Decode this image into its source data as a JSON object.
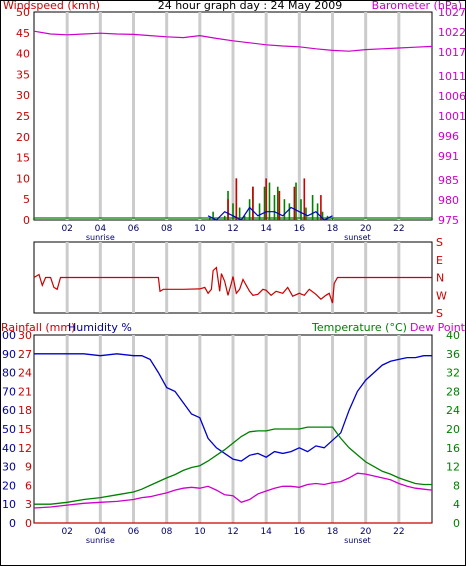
{
  "chart_data": [
    {
      "type": "line",
      "title": "24 hour graph day : 24 May 2009",
      "left_axis": {
        "label": "Windspeed (kmh)",
        "ticks": [
          0,
          5,
          10,
          15,
          20,
          25,
          30,
          35,
          40,
          45,
          50
        ],
        "range": [
          0,
          50
        ],
        "color": "#cc0000"
      },
      "right_axis": {
        "label": "Barometer (hPa)",
        "ticks": [
          975,
          980,
          985,
          991,
          996,
          1001,
          1006,
          1011,
          1017,
          1022,
          1027
        ],
        "range": [
          975,
          1027
        ],
        "color": "#cc00cc"
      },
      "x_axis": {
        "ticks": [
          "02",
          "04",
          "06",
          "08",
          "10",
          "12",
          "14",
          "16",
          "18",
          "20",
          "22"
        ],
        "range": [
          0,
          24
        ],
        "annotations": [
          {
            "label": "sunrise",
            "hour": 4
          },
          {
            "label": "sunset",
            "hour": 19.5
          }
        ]
      },
      "grid": true,
      "series": [
        {
          "name": "Barometer (hPa)",
          "axis": "right",
          "color": "#cc00cc",
          "x": [
            0,
            1,
            2,
            3,
            4,
            5,
            6,
            7,
            8,
            9,
            10,
            11,
            12,
            13,
            14,
            15,
            16,
            17,
            18,
            19,
            20,
            21,
            22,
            23,
            24
          ],
          "values": [
            1022.2,
            1021.5,
            1021.3,
            1021.5,
            1021.7,
            1021.5,
            1021.4,
            1021.1,
            1020.8,
            1020.6,
            1021.1,
            1020.4,
            1019.8,
            1019.3,
            1018.8,
            1018.5,
            1018.3,
            1017.8,
            1017.4,
            1017.2,
            1017.6,
            1017.8,
            1018.0,
            1018.2,
            1018.4
          ]
        },
        {
          "name": "Windspeed (kmh)",
          "axis": "left",
          "color": "#008000",
          "x": [
            0,
            10.6,
            10.8,
            11.5,
            11.7,
            12.0,
            12.2,
            12.4,
            12.7,
            13.0,
            13.2,
            13.6,
            13.9,
            14.2,
            14.5,
            14.7,
            15.1,
            15.4,
            15.8,
            16.1,
            16.4,
            16.8,
            17.1,
            17.4,
            17.7,
            18.0,
            24
          ],
          "values": [
            0.5,
            0.5,
            2,
            1,
            7,
            4,
            10,
            3,
            1,
            5,
            8,
            4,
            8,
            9,
            6,
            8,
            5,
            4,
            9,
            5,
            3,
            6,
            4,
            2,
            1,
            0.5,
            0.5
          ]
        },
        {
          "name": "Wind gust (kmh)",
          "axis": "left",
          "color": "#cc0000",
          "x": [
            11.7,
            12.2,
            13.2,
            14.0,
            14.8,
            15.7,
            16.3,
            17.3
          ],
          "values": [
            5,
            10,
            8,
            10,
            7,
            8,
            10,
            6
          ]
        },
        {
          "name": "Windspeed avg (kmh)",
          "axis": "left",
          "color": "#0000cc",
          "x": [
            10.5,
            11,
            11.5,
            12,
            12.5,
            13,
            13.5,
            14,
            14.5,
            15,
            15.5,
            16,
            16.5,
            17,
            17.5,
            18
          ],
          "values": [
            1,
            0,
            2,
            1,
            0,
            3,
            1,
            2,
            2,
            1,
            3,
            2,
            1,
            2,
            0,
            1
          ]
        }
      ]
    },
    {
      "type": "line",
      "title": "",
      "right_axis": {
        "ticks": [
          "S",
          "E",
          "N",
          "W",
          "S"
        ],
        "labels": [
          "S",
          "E",
          "N",
          "W",
          "S"
        ],
        "range": [
          0,
          360
        ]
      },
      "x_axis": {
        "range": [
          0,
          24
        ]
      },
      "grid": true,
      "series": [
        {
          "name": "Wind direction",
          "color": "#cc0000",
          "x": [
            0,
            0.3,
            0.5,
            0.7,
            1.0,
            1.2,
            1.4,
            1.6,
            2,
            4,
            6,
            7,
            7.5,
            7.6,
            7.8,
            8,
            9,
            10,
            10.3,
            10.5,
            10.7,
            10.8,
            11,
            11.2,
            11.3,
            11.5,
            11.7,
            11.9,
            12.0,
            12.2,
            12.4,
            12.6,
            12.8,
            13.0,
            13.2,
            13.5,
            13.8,
            14.0,
            14.3,
            14.6,
            15.0,
            15.3,
            15.6,
            16.0,
            16.3,
            16.6,
            17.0,
            17.3,
            17.6,
            17.8,
            18.0,
            18.1,
            18.3,
            20,
            22,
            24
          ],
          "values": [
            180,
            195,
            140,
            180,
            180,
            130,
            120,
            180,
            180,
            180,
            180,
            180,
            180,
            110,
            120,
            120,
            120,
            122,
            130,
            100,
            120,
            215,
            230,
            110,
            200,
            160,
            90,
            150,
            185,
            100,
            120,
            170,
            140,
            110,
            90,
            95,
            120,
            115,
            90,
            110,
            100,
            130,
            85,
            100,
            90,
            120,
            95,
            70,
            90,
            100,
            50,
            150,
            180,
            180,
            180,
            180
          ]
        }
      ]
    },
    {
      "type": "line",
      "title": "",
      "left_axis_1": {
        "label": "Rainfall (mm)",
        "ticks": [
          0,
          3,
          6,
          9,
          12,
          15,
          18,
          21,
          24,
          27,
          30
        ],
        "range": [
          0,
          30
        ],
        "color": "#cc0000"
      },
      "left_axis_2": {
        "label": "Humidity %",
        "ticks": [
          0,
          10,
          20,
          30,
          40,
          50,
          60,
          70,
          80,
          90,
          100
        ],
        "range": [
          0,
          100
        ],
        "color": "#000099"
      },
      "right_axis_1": {
        "label": "Temperature (°C)",
        "ticks": [
          0,
          2,
          4,
          6,
          8,
          10,
          12,
          14,
          16,
          18,
          20,
          22,
          24,
          26,
          28,
          30,
          32,
          34,
          36,
          38,
          40
        ],
        "range": [
          0,
          40
        ],
        "color": "#008000"
      },
      "right_axis_2": {
        "label": "Dew Point",
        "color": "#cc00cc"
      },
      "x_axis": {
        "ticks": [
          "02",
          "04",
          "06",
          "08",
          "10",
          "12",
          "14",
          "16",
          "18",
          "20",
          "22"
        ],
        "range": [
          0,
          24
        ],
        "annotations": [
          {
            "label": "sunrise",
            "hour": 4
          },
          {
            "label": "sunset",
            "hour": 19.5
          }
        ]
      },
      "grid": true,
      "series": [
        {
          "name": "Humidity %",
          "axis": "left_2",
          "color": "#0000cc",
          "x": [
            0,
            1,
            2,
            3,
            4,
            5,
            6,
            6.5,
            7,
            7.5,
            8,
            8.5,
            9,
            9.5,
            10,
            10.5,
            11,
            11.5,
            12,
            12.5,
            13,
            13.5,
            14,
            14.5,
            15,
            15.5,
            16,
            16.5,
            17,
            17.5,
            18,
            18.5,
            19,
            19.5,
            20,
            20.5,
            21,
            21.5,
            22,
            22.5,
            23,
            23.5,
            24
          ],
          "values": [
            90,
            90,
            90,
            90,
            89,
            90,
            89,
            89,
            87,
            80,
            72,
            70,
            64,
            58,
            56,
            45,
            40,
            37,
            34,
            33,
            36,
            37,
            35,
            38,
            37,
            38,
            40,
            38,
            41,
            40,
            44,
            48,
            60,
            70,
            76,
            80,
            84,
            86,
            87,
            88,
            88,
            89,
            89
          ]
        },
        {
          "name": "Temperature (°C)",
          "axis": "right_1",
          "color": "#008000",
          "x": [
            0,
            1,
            2,
            3,
            4,
            5,
            6,
            6.5,
            7,
            7.5,
            8,
            8.5,
            9,
            9.5,
            10,
            10.5,
            11,
            11.5,
            12,
            12.5,
            13,
            13.5,
            14,
            14.5,
            15,
            15.5,
            16,
            16.5,
            17,
            17.5,
            18,
            18.5,
            19,
            19.5,
            20,
            20.5,
            21,
            21.5,
            22,
            22.5,
            23,
            23.5,
            24
          ],
          "values": [
            4.0,
            4.0,
            4.4,
            5.0,
            5.4,
            6.0,
            6.6,
            7.2,
            8.0,
            8.8,
            9.6,
            10.3,
            11.2,
            11.8,
            12.2,
            13.2,
            14.4,
            15.6,
            17.0,
            18.4,
            19.4,
            19.6,
            19.6,
            20.0,
            20.0,
            20.0,
            20.0,
            20.4,
            20.4,
            20.4,
            20.4,
            18.0,
            16.0,
            14.5,
            13.0,
            12.0,
            11.0,
            10.4,
            9.6,
            9.0,
            8.4,
            8.2,
            8.2
          ]
        },
        {
          "name": "Dew Point",
          "axis": "right_1",
          "color": "#cc00cc",
          "x": [
            0,
            1,
            2,
            3,
            4,
            5,
            6,
            6.5,
            7,
            7.5,
            8,
            8.5,
            9,
            9.5,
            10,
            10.5,
            11,
            11.5,
            12,
            12.5,
            13,
            13.5,
            14,
            14.5,
            15,
            15.5,
            16,
            16.5,
            17,
            17.5,
            18,
            18.5,
            19,
            19.5,
            20,
            20.5,
            21,
            21.5,
            22,
            22.5,
            23,
            23.5,
            24
          ],
          "values": [
            3.2,
            3.4,
            3.8,
            4.2,
            4.4,
            4.6,
            5.0,
            5.4,
            5.6,
            6.0,
            6.4,
            7.0,
            7.4,
            7.6,
            7.4,
            7.8,
            7.0,
            6.0,
            5.8,
            4.4,
            5.0,
            6.2,
            6.8,
            7.4,
            7.8,
            7.8,
            7.6,
            8.2,
            8.4,
            8.2,
            8.6,
            8.8,
            9.6,
            10.6,
            10.4,
            10.0,
            9.6,
            9.2,
            8.4,
            7.8,
            7.4,
            7.2,
            7.0
          ]
        },
        {
          "name": "Rainfall (mm)",
          "axis": "left_1",
          "color": "#cc0000",
          "x": [
            0,
            24
          ],
          "values": [
            0,
            0
          ]
        }
      ]
    }
  ]
}
